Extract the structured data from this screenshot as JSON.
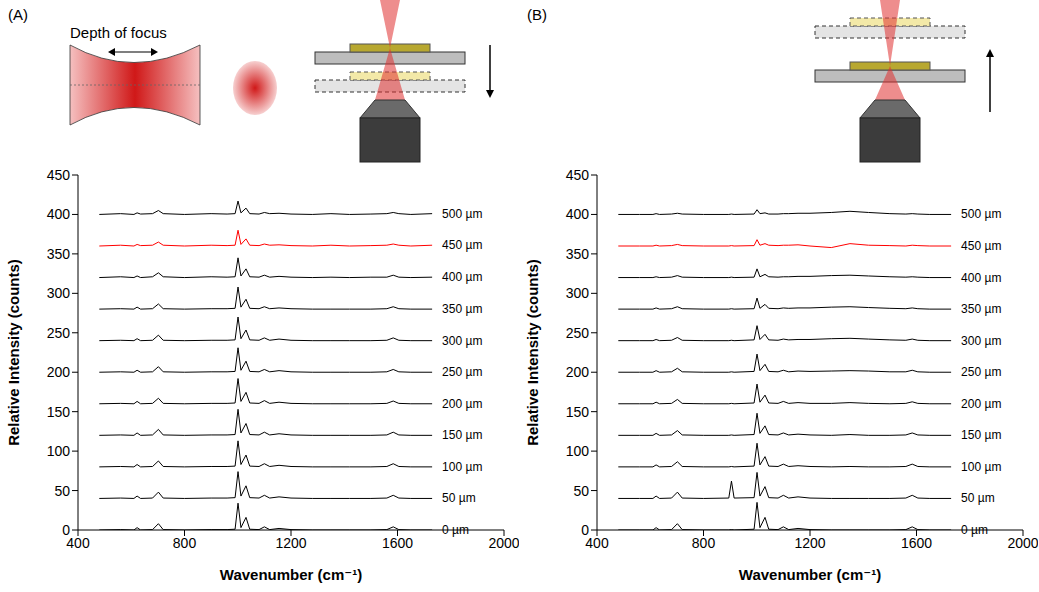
{
  "chart_data": [
    {
      "type": "line",
      "title": "(A)",
      "annotations": [
        "Depth of focus"
      ],
      "x_label": "Wavenumber (cm⁻¹)",
      "y_label": "Relative Intensity (counts)",
      "grid": false,
      "xlim": [
        400,
        2000
      ],
      "xticks": [
        400,
        800,
        1200,
        1600,
        2000
      ],
      "ylim": [
        0,
        450
      ],
      "yticks": [
        0,
        50,
        100,
        150,
        200,
        250,
        300,
        350,
        400,
        450
      ],
      "x": [
        480,
        560,
        610,
        622,
        635,
        680,
        702,
        720,
        800,
        900,
        960,
        990,
        1001,
        1012,
        1031,
        1045,
        1080,
        1100,
        1120,
        1155,
        1200,
        1280,
        1350,
        1420,
        1500,
        1560,
        1584,
        1605,
        1650,
        1730
      ],
      "series": [
        {
          "name": "0 µm",
          "color": "#000000",
          "values": [
            0,
            0.5,
            0,
            3,
            0,
            0.5,
            8,
            0.5,
            0,
            0.5,
            0.5,
            1,
            34,
            3,
            16,
            1,
            0.5,
            4,
            0.5,
            2,
            0.5,
            0,
            0,
            0,
            0,
            0.5,
            4,
            0.5,
            0,
            0
          ]
        },
        {
          "name": "50 µm",
          "color": "#000000",
          "values": [
            40,
            40.5,
            40,
            43,
            40,
            40.5,
            48,
            40.5,
            40,
            40.5,
            40.5,
            41,
            74,
            43,
            56,
            41,
            40.5,
            44,
            40.5,
            42,
            40.5,
            40,
            40,
            40,
            40,
            40.5,
            44,
            40.5,
            40,
            40
          ]
        },
        {
          "name": "100 µm",
          "color": "#000000",
          "values": [
            80,
            80.5,
            80,
            83,
            80,
            80.5,
            87.5,
            80.5,
            80,
            80.5,
            80.5,
            81,
            113,
            83,
            95,
            81,
            80.5,
            84,
            80.5,
            82,
            80.5,
            80,
            80,
            80,
            80,
            80.5,
            84,
            80.5,
            80,
            80
          ]
        },
        {
          "name": "150 µm",
          "color": "#000000",
          "values": [
            120,
            120.5,
            120,
            123,
            120,
            120.5,
            127.5,
            120.5,
            120,
            120.5,
            120.5,
            121,
            153,
            123,
            135,
            121,
            120.5,
            124,
            120.5,
            122,
            120.5,
            120,
            120,
            120,
            120,
            120.5,
            124,
            120.5,
            120,
            120
          ]
        },
        {
          "name": "200 µm",
          "color": "#000000",
          "values": [
            160,
            160.5,
            160,
            163,
            160,
            160.5,
            167,
            160.5,
            160,
            160.5,
            160.5,
            161,
            192,
            163,
            174.5,
            161,
            160.5,
            164,
            160.5,
            162,
            160.5,
            160,
            160,
            160,
            160,
            160.5,
            163.5,
            160.5,
            160,
            160
          ]
        },
        {
          "name": "250 µm",
          "color": "#000000",
          "values": [
            200,
            200.5,
            200,
            202.5,
            200,
            200.5,
            207,
            200.5,
            200,
            200.5,
            200.5,
            201,
            231,
            202.5,
            214,
            201,
            200.5,
            203.5,
            200.5,
            202,
            200.5,
            200,
            200,
            200,
            200,
            200.5,
            203.5,
            200.5,
            200,
            200
          ]
        },
        {
          "name": "300 µm",
          "color": "#000000",
          "values": [
            240,
            240.5,
            240,
            242.5,
            240,
            240.5,
            247,
            240.5,
            240,
            240.5,
            240.5,
            241,
            270,
            242.5,
            253.5,
            241,
            240.5,
            243.5,
            240.5,
            242,
            240.5,
            240,
            240,
            240,
            240,
            240.5,
            243.5,
            240.5,
            240,
            240
          ]
        },
        {
          "name": "350 µm",
          "color": "#000000",
          "values": [
            280,
            280.5,
            280,
            282.5,
            280,
            280.5,
            286.5,
            280.5,
            280,
            280.5,
            280.5,
            281,
            308,
            282.5,
            292.5,
            281,
            280.5,
            283,
            280.5,
            281.5,
            280.5,
            280,
            280,
            280,
            280,
            280.5,
            283,
            280.5,
            280,
            280
          ]
        },
        {
          "name": "400 µm",
          "color": "#000000",
          "values": [
            320,
            321,
            320,
            322,
            320,
            321,
            326,
            321,
            320,
            321,
            320.5,
            321,
            345,
            322,
            331,
            321,
            320.5,
            323,
            320.5,
            321.5,
            320.5,
            320,
            320.5,
            320,
            320.5,
            320.5,
            323,
            320.5,
            320,
            320.5
          ]
        },
        {
          "name": "450 µm",
          "color": "#ff0000",
          "values": [
            360,
            361,
            360,
            362,
            360.5,
            361,
            365,
            361,
            360,
            361,
            360.5,
            361,
            380,
            362,
            369,
            361,
            360.5,
            362.5,
            361,
            361.5,
            360.5,
            360,
            361,
            360,
            360.5,
            361,
            362.5,
            361,
            360,
            361
          ]
        },
        {
          "name": "500 µm",
          "color": "#000000",
          "values": [
            400,
            401,
            400,
            402,
            400.5,
            401,
            405,
            401,
            400,
            401,
            400.5,
            401,
            417,
            402,
            408,
            401,
            400.5,
            402.5,
            401,
            401.5,
            400.5,
            400,
            401,
            400,
            400.5,
            401,
            402.5,
            401,
            400,
            401
          ]
        }
      ]
    },
    {
      "type": "line",
      "title": "(B)",
      "x_label": "Wavenumber (cm⁻¹)",
      "y_label": "Relative Intensity (counts)",
      "grid": false,
      "xlim": [
        400,
        2000
      ],
      "xticks": [
        400,
        800,
        1200,
        1600,
        2000
      ],
      "ylim": [
        0,
        450
      ],
      "yticks": [
        0,
        50,
        100,
        150,
        200,
        250,
        300,
        350,
        400,
        450
      ],
      "x": [
        480,
        560,
        610,
        622,
        635,
        680,
        702,
        720,
        800,
        895,
        905,
        915,
        990,
        1001,
        1012,
        1031,
        1045,
        1080,
        1100,
        1120,
        1155,
        1200,
        1280,
        1350,
        1420,
        1500,
        1560,
        1584,
        1605,
        1650,
        1730
      ],
      "series": [
        {
          "name": "0 µm",
          "color": "#000000",
          "values": [
            0,
            0,
            0,
            3,
            0,
            0.5,
            8,
            0.5,
            0,
            0,
            0.5,
            0,
            1,
            35,
            3,
            16,
            1,
            0.5,
            4,
            0.5,
            2,
            0.5,
            0,
            0,
            0,
            0,
            0.5,
            4,
            0.5,
            0,
            0
          ]
        },
        {
          "name": "50 µm",
          "color": "#000000",
          "values": [
            40,
            40,
            40,
            43,
            40,
            40.5,
            48,
            40.5,
            40,
            40.5,
            62,
            40.5,
            41,
            73,
            43,
            55,
            41,
            40.5,
            44,
            40.5,
            42,
            40.5,
            40,
            40,
            40,
            40,
            40.5,
            44,
            40.5,
            40,
            40
          ]
        },
        {
          "name": "100 µm",
          "color": "#000000",
          "values": [
            80,
            80,
            80,
            82.5,
            80,
            80.5,
            86.5,
            80.5,
            80,
            80,
            80.5,
            80,
            81,
            110,
            82.5,
            93,
            81,
            80.5,
            83.5,
            80.5,
            81.5,
            80.5,
            80,
            80.5,
            80,
            80,
            80.5,
            83.5,
            80.5,
            80,
            80
          ]
        },
        {
          "name": "150 µm",
          "color": "#000000",
          "values": [
            120,
            120,
            120,
            122.5,
            120,
            120.5,
            126,
            120.5,
            120,
            120,
            120.5,
            120,
            121,
            148,
            122.5,
            132,
            121,
            120.5,
            123,
            120.5,
            121.5,
            120.5,
            120,
            121,
            120,
            120,
            120.5,
            123,
            120.5,
            120,
            120
          ]
        },
        {
          "name": "200 µm",
          "color": "#000000",
          "values": [
            160,
            160,
            160,
            162,
            160,
            160.5,
            165.5,
            160.5,
            160,
            160,
            160.5,
            160,
            161,
            185,
            162,
            171,
            161,
            160.5,
            163,
            160.5,
            161.5,
            160.5,
            160.5,
            161.5,
            160.5,
            160,
            160.5,
            162.5,
            160.5,
            160,
            160
          ]
        },
        {
          "name": "250 µm",
          "color": "#000000",
          "values": [
            200,
            200,
            200,
            202,
            200,
            200.5,
            205,
            200.5,
            200,
            200,
            200.5,
            200,
            201,
            223,
            202,
            210,
            201,
            200.5,
            202.5,
            200.5,
            201.5,
            201,
            201.5,
            202,
            201.5,
            200.5,
            200.5,
            202.5,
            200.5,
            200,
            200
          ]
        },
        {
          "name": "300 µm",
          "color": "#000000",
          "values": [
            240,
            240,
            240,
            241.5,
            240,
            240.5,
            244,
            240.5,
            240,
            240,
            240.5,
            240,
            241,
            259,
            241.5,
            248,
            241,
            240.5,
            242,
            241,
            241.5,
            241.5,
            242.5,
            243,
            242,
            241,
            240.5,
            242,
            240.5,
            240,
            240
          ]
        },
        {
          "name": "350 µm",
          "color": "#000000",
          "values": [
            280,
            280,
            280,
            281.5,
            280,
            280.5,
            283,
            280.5,
            280,
            280,
            280.5,
            280,
            280.5,
            294,
            281,
            286,
            281,
            280.5,
            281.5,
            281,
            281.5,
            281.5,
            282.5,
            283,
            282,
            281,
            280.5,
            281.5,
            280.5,
            280,
            280
          ]
        },
        {
          "name": "400 µm",
          "color": "#000000",
          "values": [
            320,
            320,
            320,
            321,
            320,
            320.5,
            322.5,
            320.5,
            320,
            320,
            320.5,
            320,
            320.5,
            331,
            321,
            324,
            321,
            320.5,
            321,
            321,
            321.5,
            321.5,
            322.5,
            323,
            322,
            321,
            320.5,
            321,
            320.5,
            320,
            320
          ]
        },
        {
          "name": "450 µm",
          "color": "#ff0000",
          "values": [
            360,
            360,
            360,
            361,
            360,
            360.5,
            362,
            360.5,
            360,
            360,
            360.5,
            360,
            360.5,
            368,
            361,
            363,
            361,
            360.5,
            361,
            361,
            361.5,
            360,
            358,
            363,
            361,
            360.5,
            360,
            361,
            360.5,
            360,
            360
          ]
        },
        {
          "name": "500 µm",
          "color": "#000000",
          "values": [
            400,
            400,
            400,
            401,
            400,
            400.5,
            401.5,
            400.5,
            400,
            400,
            400.5,
            400,
            400.5,
            406,
            401,
            402,
            400.5,
            400.5,
            401,
            401,
            401.5,
            401.5,
            402.5,
            404,
            402.5,
            401,
            400.5,
            401,
            400.5,
            400,
            400
          ]
        }
      ]
    }
  ]
}
